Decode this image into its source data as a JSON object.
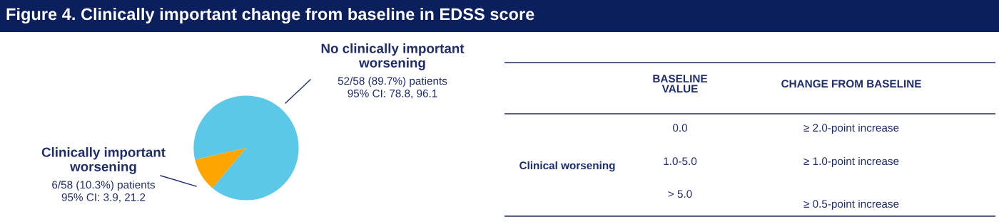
{
  "chart_data": [
    {
      "type": "pie",
      "title": "Figure 4. Clinically important change from baseline in EDSS score",
      "categories": [
        "No clinically important worsening",
        "Clinically important worsening"
      ],
      "values": [
        89.7,
        10.3
      ],
      "colors": [
        "#5bc8e8",
        "#ffa500"
      ],
      "value_labels": [
        "52/58 (89.7%) patients\n95% CI: 78.8, 96.1",
        "6/58 (10.3%) patients\n95% CI: 3.9, 21.2"
      ]
    },
    {
      "type": "other",
      "annotations": [
        "BASELINE\nVALUE",
        "CHANGE FROM BASELINE",
        "Clinical worsening",
        "0.0",
        "1.0-5.0",
        "> 5.0",
        "≥ 2.0-point increase",
        "≥ 1.0-point increase",
        "≥ 0.5-point increase"
      ]
    }
  ]
}
